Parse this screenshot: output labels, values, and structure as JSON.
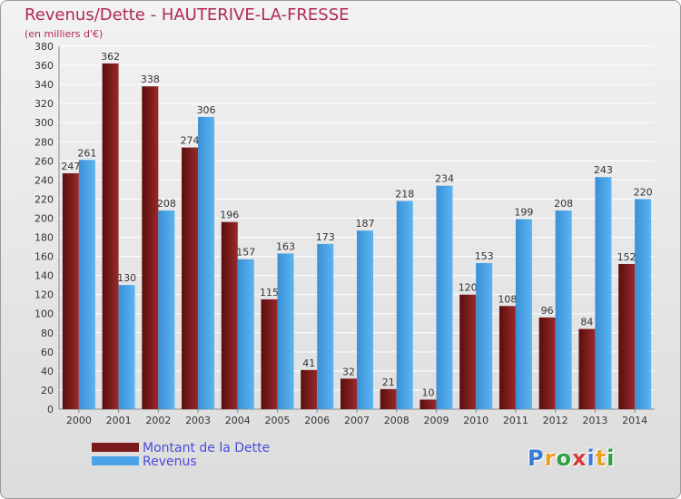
{
  "header": {
    "title": "Revenus/Dette - HAUTERIVE-LA-FRESSE",
    "subtitle": "(en milliers d'€)"
  },
  "legend": {
    "debt_label": "Montant de la Dette",
    "revenue_label": "Revenus"
  },
  "logo": {
    "letters": [
      "P",
      "r",
      "o",
      "x",
      "i",
      "t",
      "i"
    ],
    "colors": [
      "#3a7bd5",
      "#e8a020",
      "#2f9e44",
      "#d63a3a",
      "#3a7bd5",
      "#e8a020",
      "#2f9e44"
    ]
  },
  "colors": {
    "debt": "#7a1a1a",
    "revenue": "#4aa3e6",
    "grid": "#ffffff",
    "title": "#b0285a"
  },
  "chart_data": {
    "type": "bar",
    "title": "Revenus/Dette - HAUTERIVE-LA-FRESSE",
    "subtitle": "(en milliers d'€)",
    "categories": [
      "2000",
      "2001",
      "2002",
      "2003",
      "2004",
      "2005",
      "2006",
      "2007",
      "2008",
      "2009",
      "2010",
      "2011",
      "2012",
      "2013",
      "2014"
    ],
    "series": [
      {
        "name": "Montant de la Dette",
        "values": [
          247,
          362,
          338,
          274,
          196,
          115,
          41,
          32,
          21,
          10,
          120,
          108,
          96,
          84,
          152
        ]
      },
      {
        "name": "Revenus",
        "values": [
          261,
          130,
          208,
          306,
          157,
          163,
          173,
          187,
          218,
          234,
          153,
          199,
          208,
          243,
          220
        ]
      }
    ],
    "ylim": [
      0,
      380
    ],
    "yticks": [
      0,
      20,
      40,
      60,
      80,
      100,
      120,
      140,
      160,
      180,
      200,
      220,
      240,
      260,
      280,
      300,
      320,
      340,
      360,
      380
    ],
    "grid": true,
    "legend_position": "bottom-left"
  }
}
